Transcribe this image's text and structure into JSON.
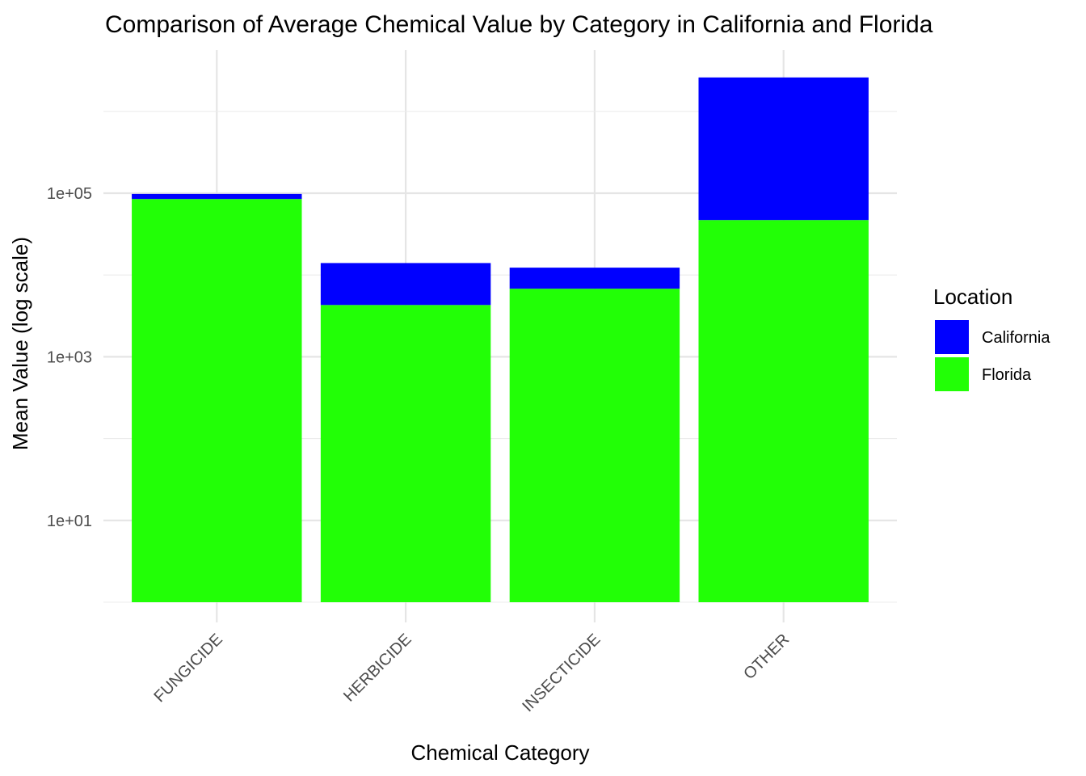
{
  "chart_data": {
    "type": "bar",
    "stacked": true,
    "title": "Comparison of Average Chemical Value by Category in California and Florida",
    "xlabel": "Chemical Category",
    "ylabel": "Mean Value (log scale)",
    "y_scale": "log10",
    "ylim": [
      1,
      3000000
    ],
    "y_ticks": [
      10,
      1000,
      100000
    ],
    "y_tick_labels": [
      "1e+01",
      "1e+03",
      "1e+05"
    ],
    "categories": [
      "FUNGICIDE",
      "HERBICIDE",
      "INSECTICIDE",
      "OTHER"
    ],
    "series": [
      {
        "name": "California",
        "color": "#0000ff",
        "values": [
          98000,
          14000,
          12300,
          2600000
        ]
      },
      {
        "name": "Florida",
        "color": "#22ff06",
        "values": [
          85000,
          4300,
          6800,
          47000
        ]
      }
    ],
    "legend": {
      "title": "Location",
      "position": "right",
      "entries": [
        "California",
        "Florida"
      ]
    },
    "grid": true
  }
}
